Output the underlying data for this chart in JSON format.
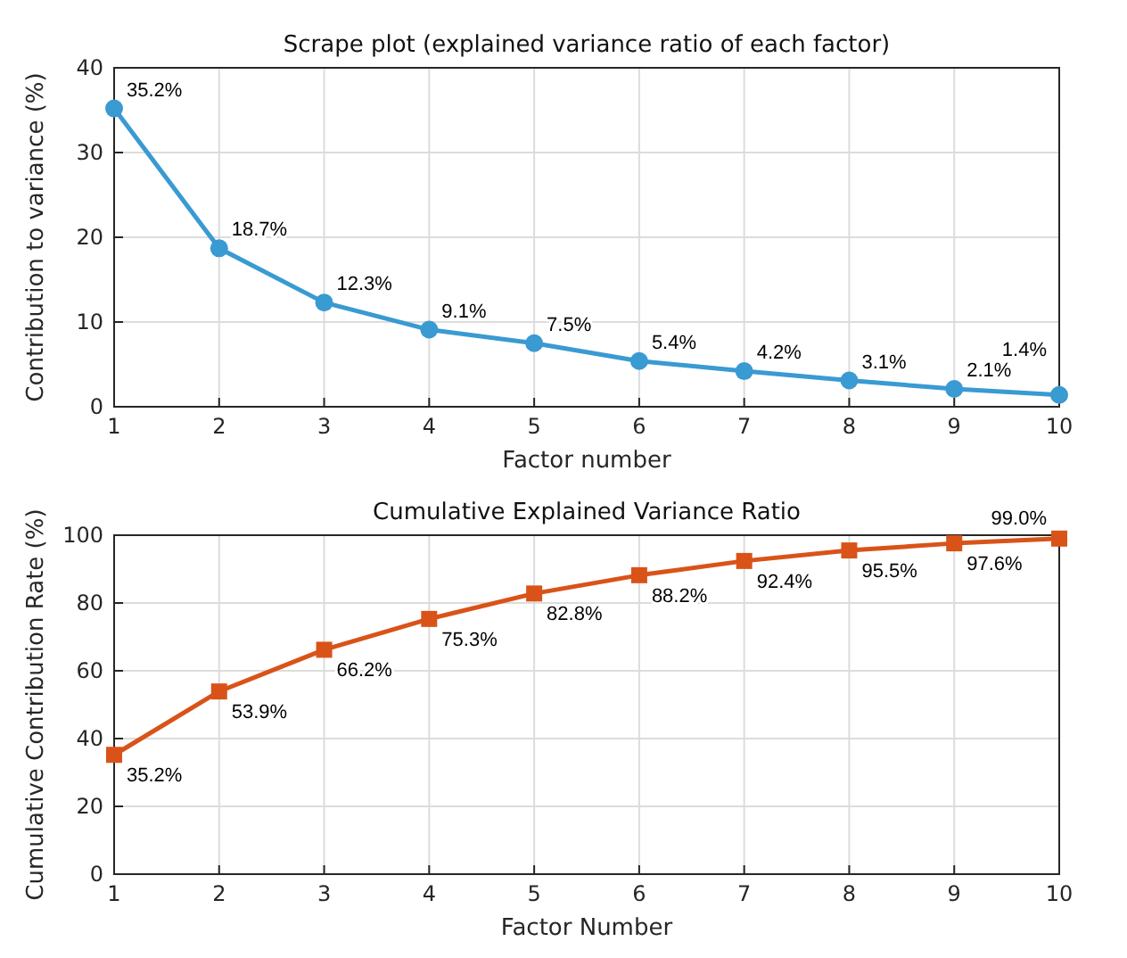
{
  "chart_data": [
    {
      "type": "line",
      "title": "Scrape plot (explained variance ratio of each factor)",
      "xlabel": "Factor number",
      "ylabel": "Contribution to variance (%)",
      "x": [
        1,
        2,
        3,
        4,
        5,
        6,
        7,
        8,
        9,
        10
      ],
      "xlim": [
        1,
        10
      ],
      "xticks": [
        1,
        2,
        3,
        4,
        5,
        6,
        7,
        8,
        9,
        10
      ],
      "ylim": [
        0,
        40
      ],
      "yticks": [
        0,
        10,
        20,
        30,
        40
      ],
      "grid": true,
      "marker": "circle",
      "line_style": "solid",
      "series": [
        {
          "color": "#3a9ad2",
          "values": [
            35.2,
            18.7,
            12.3,
            9.1,
            7.5,
            5.4,
            4.2,
            3.1,
            2.1,
            1.4
          ],
          "value_labels": [
            "35.2%",
            "18.7%",
            "12.3%",
            "9.1%",
            "7.5%",
            "5.4%",
            "4.2%",
            "3.1%",
            "2.1%",
            "1.4%"
          ]
        }
      ]
    },
    {
      "type": "line",
      "title": "Cumulative Explained Variance Ratio",
      "xlabel": "Factor Number",
      "ylabel": "Cumulative Contribution Rate (%)",
      "x": [
        1,
        2,
        3,
        4,
        5,
        6,
        7,
        8,
        9,
        10
      ],
      "xlim": [
        1,
        10
      ],
      "xticks": [
        1,
        2,
        3,
        4,
        5,
        6,
        7,
        8,
        9,
        10
      ],
      "ylim": [
        0,
        100
      ],
      "yticks": [
        0,
        20,
        40,
        60,
        80,
        100
      ],
      "grid": true,
      "marker": "square",
      "line_style": "solid",
      "series": [
        {
          "color": "#d95319",
          "values": [
            35.2,
            53.9,
            66.2,
            75.3,
            82.8,
            88.2,
            92.4,
            95.5,
            97.6,
            99.0
          ],
          "value_labels": [
            "35.2%",
            "53.9%",
            "66.2%",
            "75.3%",
            "82.8%",
            "88.2%",
            "92.4%",
            "95.5%",
            "97.6%",
            "99.0%"
          ]
        }
      ]
    }
  ]
}
